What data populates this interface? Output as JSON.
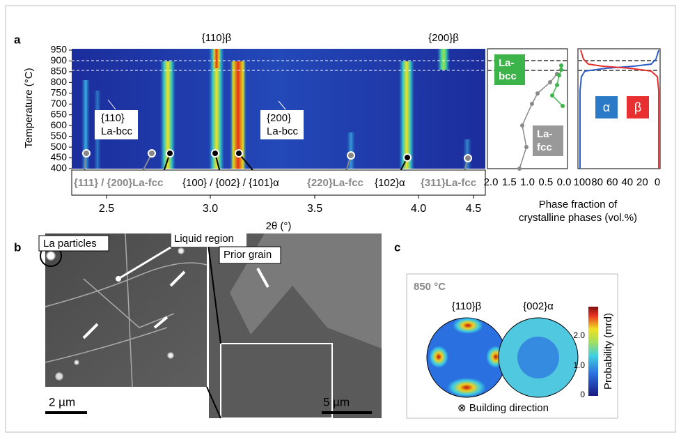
{
  "panels": {
    "a": {
      "label": "a",
      "heatmap": {
        "y_axis_label": "Temperature (°C)",
        "y_ticks": [
          "950",
          "900",
          "850",
          "800",
          "750",
          "700",
          "650",
          "600",
          "550",
          "500",
          "450",
          "400"
        ],
        "top_labels": [
          "{110}β",
          "{200}β"
        ],
        "inset_labels": [
          [
            "{110}",
            "La-bcc"
          ],
          [
            "{200}",
            "La-bcc"
          ]
        ],
        "reflection_labels": [
          "{111} / {200}La-fcc",
          "{100} / {002} / {101}α",
          "{220}La-fcc",
          "{102}α",
          "{311}La-fcc"
        ],
        "x_ticks": [
          "2.5",
          "3.0",
          "3.5",
          "4.0",
          "4.5"
        ],
        "x_axis_label": "2θ (°)"
      },
      "phase_fraction": {
        "left_ticks": [
          "2.0",
          "1.5",
          "1.0",
          "0.5",
          "0.0"
        ],
        "right_ticks": [
          "100",
          "80",
          "60",
          "40",
          "20",
          "0"
        ],
        "labels": [
          "La-",
          "bcc",
          "La-",
          "fcc",
          "α",
          "β"
        ],
        "axis_label": [
          "Phase fraction of",
          "crystalline phases (vol.%)"
        ]
      }
    },
    "b": {
      "label": "b",
      "annotations": [
        "La particles",
        "Liquid region",
        "Prior grain"
      ],
      "scale_bars": [
        "2 µm",
        "5 µm"
      ]
    },
    "c": {
      "label": "c",
      "temperature": "850 °C",
      "pole_figures": [
        "{110}β",
        "{002}α"
      ],
      "colorbar_ticks": [
        "2.0",
        "1.0",
        "0"
      ],
      "colorbar_label": "Probability (mrd)",
      "footer": "⊗  Building direction"
    }
  }
}
